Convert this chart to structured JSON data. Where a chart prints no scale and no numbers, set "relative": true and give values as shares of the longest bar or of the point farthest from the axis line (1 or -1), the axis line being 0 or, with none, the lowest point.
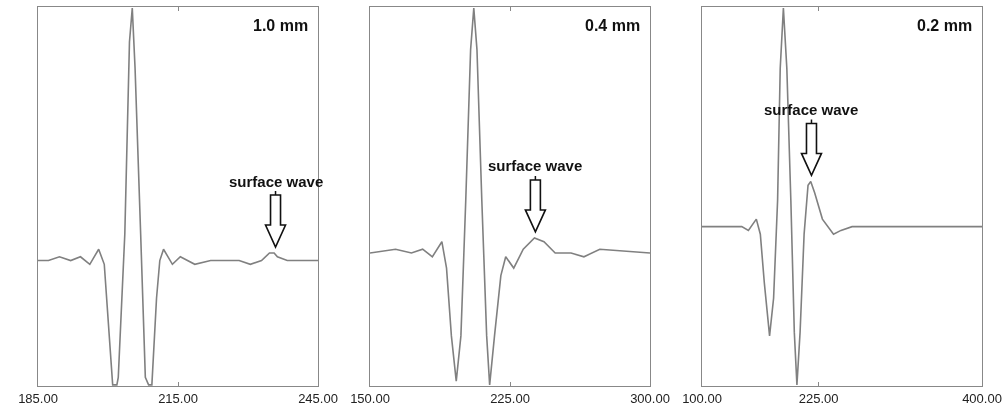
{
  "chart_data": [
    {
      "type": "line",
      "title": "1.0 mm",
      "relative": true,
      "xlim": [
        185,
        245
      ],
      "xticks": [
        {
          "value": 185,
          "label": "185.00"
        },
        {
          "value": 215,
          "label": "215.00"
        },
        {
          "value": 245,
          "label": "245.00"
        }
      ],
      "series": [
        {
          "color": "#808080",
          "x": [
            185,
            187.25,
            189.6,
            192.0,
            194.1,
            196.1,
            198.0,
            199.2,
            201.0,
            201.9,
            202.2,
            203.6,
            204.6,
            205.2,
            205.8,
            207.0,
            208.0,
            208.7,
            209.4,
            210.4,
            211.1,
            211.9,
            213.8,
            215.5,
            218.6,
            222.0,
            226.1,
            228.1,
            230.5,
            232.9,
            234.6,
            235.6,
            236.3,
            238.4,
            245
          ],
          "values": [
            0.33,
            0.33,
            0.34,
            0.33,
            0.34,
            0.32,
            0.36,
            0.32,
            0,
            0,
            0.02,
            0.4,
            0.91,
            1,
            0.84,
            0.4,
            0.02,
            0,
            0,
            0.23,
            0.33,
            0.36,
            0.32,
            0.34,
            0.32,
            0.33,
            0.33,
            0.33,
            0.32,
            0.33,
            0.35,
            0.35,
            0.34,
            0.33,
            0.33
          ]
        }
      ],
      "annotations": [
        {
          "text": "surface wave",
          "x": 235.9,
          "y": 0.35
        }
      ]
    },
    {
      "type": "line",
      "title": "0.4 mm",
      "relative": true,
      "xlim": [
        150,
        300
      ],
      "xticks": [
        {
          "value": 150,
          "label": "150.00"
        },
        {
          "value": 225,
          "label": "225.00"
        },
        {
          "value": 300,
          "label": "300.00"
        }
      ],
      "series": [
        {
          "color": "#808080",
          "x": [
            150,
            163.7,
            172.2,
            178.2,
            183.4,
            188.5,
            191.0,
            193.6,
            196.2,
            198.7,
            201.3,
            203.9,
            205.6,
            207.3,
            209.9,
            212.5,
            214.1,
            216.7,
            220.1,
            222.7,
            227.0,
            232.1,
            238.1,
            243.2,
            249.2,
            257.7,
            264.6,
            273.1,
            300
          ],
          "values": [
            0.35,
            0.36,
            0.35,
            0.36,
            0.34,
            0.38,
            0.31,
            0.13,
            0.01,
            0.13,
            0.49,
            0.89,
            1,
            0.89,
            0.49,
            0.13,
            0,
            0.13,
            0.29,
            0.34,
            0.31,
            0.36,
            0.39,
            0.38,
            0.35,
            0.35,
            0.34,
            0.36,
            0.35
          ]
        }
      ],
      "annotations": [
        {
          "text": "surface wave",
          "x": 238.6,
          "y": 0.39
        }
      ]
    },
    {
      "type": "line",
      "title": "0.2 mm",
      "relative": true,
      "xlim": [
        100,
        400
      ],
      "xticks": [
        {
          "value": 100,
          "label": "100.00"
        },
        {
          "value": 225,
          "label": "225.00"
        },
        {
          "value": 400,
          "label": "400.00"
        }
      ],
      "series": [
        {
          "color": "#808080",
          "x": [
            100,
            119.9,
            131.3,
            142.6,
            149.7,
            158.2,
            162.5,
            166.8,
            172.4,
            176.7,
            181.0,
            183.8,
            187.2,
            190.9,
            195.2,
            198.9,
            201.7,
            205.1,
            209.4,
            213.6,
            216.5,
            220.7,
            229.0,
            240.9,
            248.9,
            260.8,
            276.7,
            316.4,
            400
          ],
          "values": [
            0.42,
            0.42,
            0.42,
            0.42,
            0.41,
            0.44,
            0.4,
            0.27,
            0.13,
            0.23,
            0.49,
            0.84,
            1,
            0.84,
            0.49,
            0.14,
            0,
            0.14,
            0.4,
            0.53,
            0.54,
            0.51,
            0.44,
            0.4,
            0.41,
            0.42,
            0.42,
            0.42,
            0.42
          ]
        }
      ],
      "annotations": [
        {
          "text": "surface wave",
          "x": 217.3,
          "y": 0.54
        }
      ]
    }
  ]
}
